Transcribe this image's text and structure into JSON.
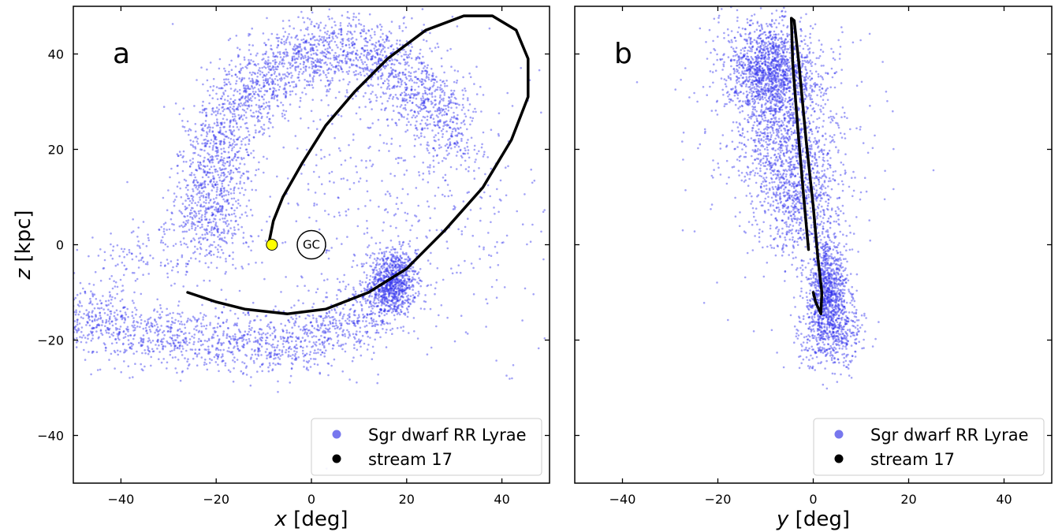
{
  "chart_data": [
    {
      "type": "scatter",
      "panel_label": "a",
      "xlabel_var": "x",
      "xlabel_unit": " [deg]",
      "ylabel_var": "z",
      "ylabel_unit": " [kpc]",
      "xlim": [
        -50,
        50
      ],
      "ylim": [
        -50,
        50
      ],
      "xticks": [
        -40,
        -20,
        0,
        20,
        40
      ],
      "yticks": [
        -40,
        -20,
        0,
        20,
        40
      ],
      "tick_labels_x": [
        "−40",
        "−20",
        "0",
        "20",
        "40"
      ],
      "tick_labels_y": [
        "−40",
        "−20",
        "0",
        "20",
        "40"
      ],
      "show_y_ticklabels": true,
      "grid": false,
      "legend_placement": "lower-right",
      "series": [
        {
          "name": "Sgr dwarf RR Lyrae",
          "kind": "point-cloud",
          "color": "#3333ee",
          "clusters": [
            {
              "center": [
                17,
                -8
              ],
              "spread": [
                2.5,
                3.5
              ],
              "count": 900
            },
            {
              "arc": "ellipse",
              "center": [
                5,
                10
              ],
              "radii": [
                26,
                31
              ],
              "from_deg": 20,
              "to_deg": 200,
              "count": 2600,
              "width": 4
            },
            {
              "arc": "polyline",
              "points": [
                [
                  15,
                  -12
                ],
                [
                  5,
                  -18
                ],
                [
                  -10,
                  -21
                ],
                [
                  -25,
                  -20
                ],
                [
                  -40,
                  -18
                ],
                [
                  -50,
                  -14
                ]
              ],
              "count": 1500,
              "width": 3.5
            },
            {
              "arc": "polyline",
              "points": [
                [
                  -20,
                  25
                ],
                [
                  -22,
                  10
                ],
                [
                  -25,
                  0
                ],
                [
                  -35,
                  -2
                ],
                [
                  -45,
                  -5
                ]
              ],
              "count": 300,
              "width": 3.5
            },
            {
              "center": [
                20,
                12
              ],
              "spread": [
                18,
                18
              ],
              "count": 600
            }
          ]
        },
        {
          "name": "stream 17",
          "kind": "orbit-line",
          "color": "#000000",
          "points": [
            [
              -9,
              0
            ],
            [
              -8,
              5
            ],
            [
              -6,
              10
            ],
            [
              -2,
              17
            ],
            [
              3,
              25
            ],
            [
              9,
              32
            ],
            [
              16,
              39
            ],
            [
              24,
              45
            ],
            [
              32,
              48
            ],
            [
              38,
              48
            ],
            [
              43,
              45
            ],
            [
              45.5,
              39
            ],
            [
              45.5,
              31
            ],
            [
              42,
              22
            ],
            [
              36,
              12
            ],
            [
              28,
              3
            ],
            [
              20,
              -5
            ],
            [
              12,
              -10
            ],
            [
              3,
              -13.5
            ],
            [
              -5,
              -14.5
            ],
            [
              -14,
              -13.5
            ],
            [
              -20,
              -12
            ],
            [
              -26,
              -10
            ]
          ]
        }
      ],
      "annotations": {
        "sun_marker": {
          "x": -8.3,
          "y": 0,
          "color": "#ffff00"
        },
        "galactic_center": {
          "x": 0,
          "y": 0,
          "label": "GC"
        }
      }
    },
    {
      "type": "scatter",
      "panel_label": "b",
      "xlabel_var": "y",
      "xlabel_unit": " [deg]",
      "ylabel_var": "",
      "ylabel_unit": "",
      "xlim": [
        -50,
        50
      ],
      "ylim": [
        -50,
        50
      ],
      "xticks": [
        -40,
        -20,
        0,
        20,
        40
      ],
      "yticks": [
        -40,
        -20,
        0,
        20,
        40
      ],
      "tick_labels_x": [
        "−40",
        "−20",
        "0",
        "20",
        "40"
      ],
      "tick_labels_y": [],
      "show_y_ticklabels": false,
      "grid": false,
      "legend_placement": "lower-right",
      "series": [
        {
          "name": "Sgr dwarf RR Lyrae",
          "kind": "point-cloud",
          "color": "#3333ee",
          "clusters": [
            {
              "center": [
                3,
                -10
              ],
              "spread": [
                2,
                5
              ],
              "count": 900
            },
            {
              "center": [
                4,
                -18
              ],
              "spread": [
                3.5,
                4
              ],
              "count": 500
            },
            {
              "center": [
                -9,
                36
              ],
              "spread": [
                4.5,
                4.5
              ],
              "count": 900
            },
            {
              "arc": "polyline",
              "points": [
                [
                  -10,
                  45
                ],
                [
                  -7,
                  30
                ],
                [
                  -4,
                  15
                ],
                [
                  -2,
                  2
                ]
              ],
              "count": 1800,
              "width": 4.5
            },
            {
              "center": [
                -5,
                20
              ],
              "spread": [
                9,
                14
              ],
              "count": 500
            }
          ]
        },
        {
          "name": "stream 17",
          "kind": "orbit-line",
          "color": "#000000",
          "points": [
            [
              -1,
              -1
            ],
            [
              -2,
              10
            ],
            [
              -3.2,
              24
            ],
            [
              -4.3,
              38
            ],
            [
              -4.6,
              47.5
            ],
            [
              -4,
              47
            ],
            [
              -3,
              38
            ],
            [
              -1.5,
              22
            ],
            [
              0,
              8
            ],
            [
              1,
              -3
            ],
            [
              1.8,
              -10
            ],
            [
              1.6,
              -14.5
            ],
            [
              0.5,
              -12
            ],
            [
              0,
              -10
            ]
          ]
        }
      ],
      "annotations": {}
    }
  ],
  "legend_entries": [
    {
      "label": "Sgr dwarf RR Lyrae",
      "color": "#7777ee"
    },
    {
      "label": "stream 17",
      "color": "#000000"
    }
  ]
}
